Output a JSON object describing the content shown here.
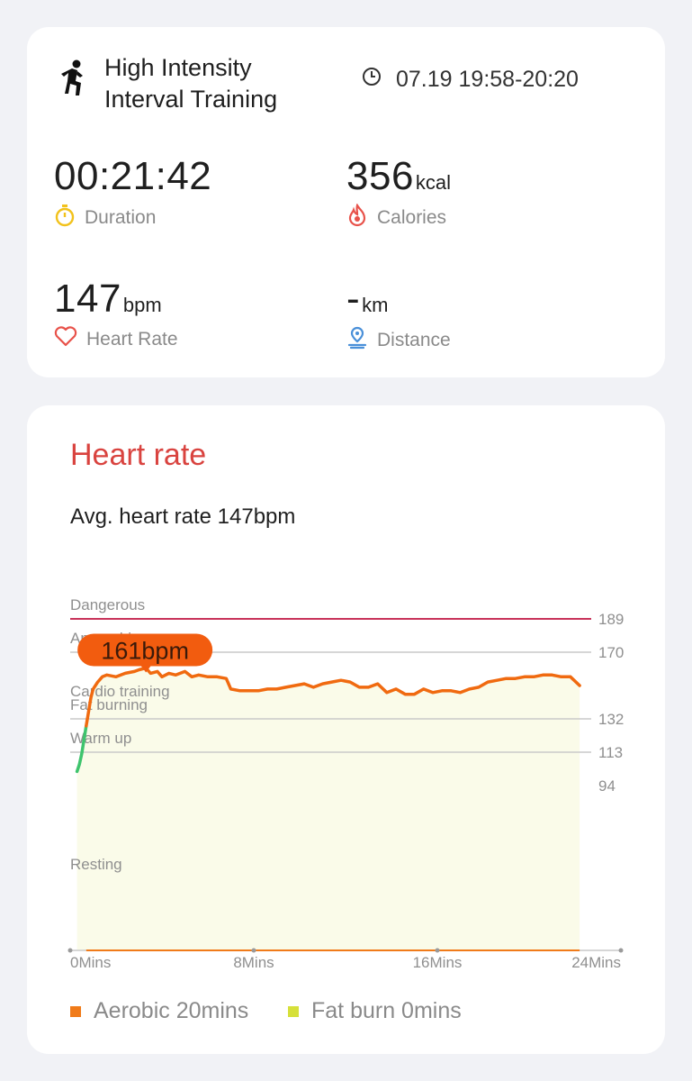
{
  "summary": {
    "activity_title": "High Intensity Interval Training",
    "time_range": "07.19 19:58-20:20",
    "duration": {
      "value": "00:21:42",
      "label": "Duration"
    },
    "calories": {
      "value": "356",
      "unit": "kcal",
      "label": "Calories"
    },
    "heart_rate": {
      "value": "147",
      "unit": "bpm",
      "label": "Heart Rate"
    },
    "distance": {
      "value": "-",
      "unit": "km",
      "label": "Distance"
    }
  },
  "heart_rate_section": {
    "title": "Heart rate",
    "avg_text": "Avg. heart rate 147bpm",
    "peak_badge": "161bpm",
    "legend": [
      {
        "label": "Aerobic 20mins",
        "color": "#f07b1a"
      },
      {
        "label": "Fat burn 0mins",
        "color": "#d6e03a"
      }
    ]
  },
  "colors": {
    "accent_red": "#d9433f",
    "dangerous": "#c8325a",
    "line_orange": "#f06a10",
    "line_green": "#3ec46d",
    "fill_yellow": "#fafbe9"
  },
  "chart_data": {
    "type": "area",
    "xlabel": "",
    "ylabel": "",
    "x_ticks": [
      "0Mins",
      "8Mins",
      "16Mins",
      "24Mins"
    ],
    "xlim": [
      0,
      24
    ],
    "ylim": [
      50,
      200
    ],
    "zones": [
      {
        "name": "Dangerous",
        "threshold": 189
      },
      {
        "name": "Anaerobic",
        "threshold": 170
      },
      {
        "name": "Cardio training",
        "threshold": 151
      },
      {
        "name": "Fat burning",
        "threshold": 132
      },
      {
        "name": "Warm up",
        "threshold": 113
      },
      {
        "name": "Resting",
        "threshold": 94
      }
    ],
    "y_tick_labels": [
      189,
      170,
      132,
      113,
      94
    ],
    "peak": {
      "x": 3.3,
      "y": 161
    },
    "series": [
      {
        "x": [
          0.3,
          0.4,
          0.5,
          0.6,
          0.7,
          0.8,
          0.9,
          1.0,
          1.2,
          1.4,
          1.6,
          2.0,
          2.4,
          2.8,
          3.0,
          3.3,
          3.5,
          3.8,
          4.0,
          4.3,
          4.6,
          5.0,
          5.3,
          5.6,
          6.0,
          6.4,
          6.8,
          7.0,
          7.4,
          7.8,
          8.2,
          8.6,
          9.0,
          9.4,
          9.8,
          10.2,
          10.6,
          11.0,
          11.4,
          11.8,
          12.2,
          12.6,
          13.0,
          13.4,
          13.8,
          14.2,
          14.6,
          15.0,
          15.4,
          15.8,
          16.2,
          16.6,
          17.0,
          17.4,
          17.8,
          18.2,
          18.6,
          19.0,
          19.4,
          19.8,
          20.2,
          20.6,
          21.0,
          21.4,
          21.8,
          22.2
        ],
        "y": [
          102,
          106,
          112,
          120,
          128,
          136,
          144,
          149,
          153,
          156,
          157,
          156,
          158,
          159,
          160,
          161,
          158,
          159,
          156,
          158,
          157,
          159,
          156,
          157,
          156,
          156,
          155,
          149,
          148,
          148,
          148,
          149,
          149,
          150,
          151,
          152,
          150,
          152,
          153,
          154,
          153,
          150,
          150,
          152,
          147,
          149,
          146,
          146,
          149,
          147,
          148,
          148,
          147,
          149,
          150,
          153,
          154,
          155,
          155,
          156,
          156,
          157,
          157,
          156,
          156,
          151
        ]
      }
    ]
  }
}
